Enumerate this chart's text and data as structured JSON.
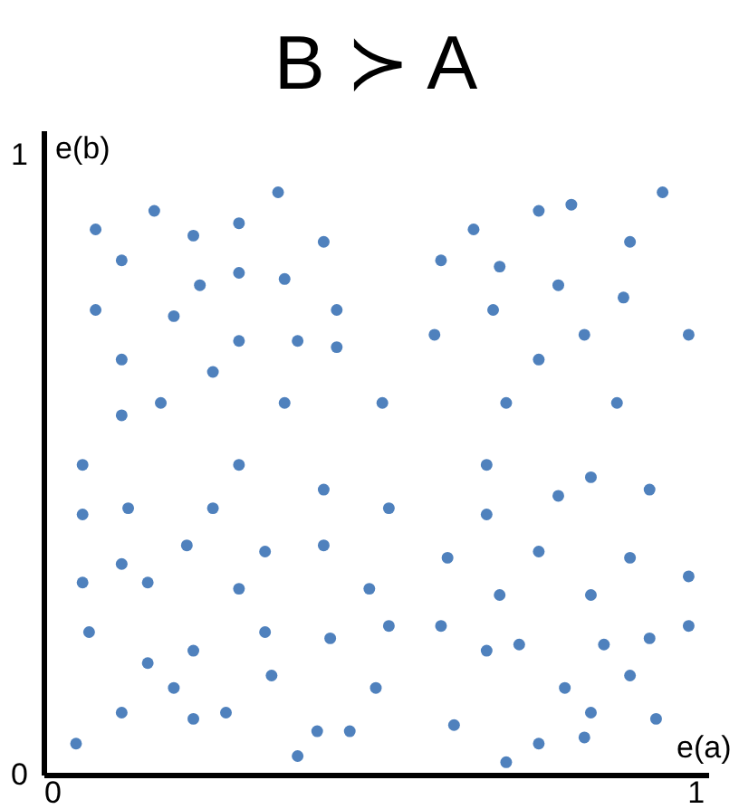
{
  "chart_data": {
    "type": "scatter",
    "title": "B ≻ A",
    "xlabel": "e(a)",
    "ylabel": "e(b)",
    "xlim": [
      0,
      1.02
    ],
    "ylim": [
      0,
      1.04
    ],
    "xticks": [
      0,
      1
    ],
    "yticks": [
      0,
      1
    ],
    "grid": false,
    "marker": "circle",
    "series": [
      {
        "color": "#4f81bd",
        "x": [
          0.36,
          0.17,
          0.08,
          0.3,
          0.23,
          0.43,
          0.12,
          0.3,
          0.37,
          0.24,
          0.08,
          0.45,
          0.2,
          0.3,
          0.39,
          0.45,
          0.12,
          0.26,
          0.18,
          0.37,
          0.52,
          0.12,
          0.06,
          0.3,
          0.95,
          0.76,
          0.81,
          0.66,
          0.9,
          0.61,
          0.7,
          0.79,
          0.89,
          0.69,
          0.6,
          0.83,
          0.99,
          0.76,
          0.71,
          0.88,
          0.68,
          0.84,
          0.06,
          0.13,
          0.26,
          0.43,
          0.22,
          0.34,
          0.43,
          0.12,
          0.06,
          0.16,
          0.3,
          0.5,
          0.07,
          0.34,
          0.23,
          0.44,
          0.16,
          0.35,
          0.2,
          0.51,
          0.12,
          0.23,
          0.28,
          0.05,
          0.42,
          0.47,
          0.39,
          0.79,
          0.93,
          0.53,
          0.68,
          0.62,
          0.76,
          0.9,
          0.99,
          0.7,
          0.84,
          0.53,
          0.61,
          0.99,
          0.68,
          0.73,
          0.86,
          0.93,
          0.8,
          0.9,
          0.84,
          0.94,
          0.63,
          0.76,
          0.83,
          0.71
        ],
        "values": [
          0.94,
          0.91,
          0.88,
          0.89,
          0.87,
          0.86,
          0.83,
          0.81,
          0.8,
          0.79,
          0.75,
          0.75,
          0.74,
          0.7,
          0.7,
          0.69,
          0.67,
          0.65,
          0.6,
          0.6,
          0.6,
          0.58,
          0.5,
          0.5,
          0.94,
          0.91,
          0.92,
          0.88,
          0.86,
          0.83,
          0.82,
          0.79,
          0.77,
          0.75,
          0.71,
          0.71,
          0.71,
          0.67,
          0.6,
          0.6,
          0.5,
          0.48,
          0.42,
          0.43,
          0.43,
          0.46,
          0.37,
          0.36,
          0.37,
          0.34,
          0.31,
          0.31,
          0.3,
          0.3,
          0.23,
          0.23,
          0.2,
          0.22,
          0.18,
          0.16,
          0.14,
          0.14,
          0.1,
          0.09,
          0.1,
          0.05,
          0.07,
          0.07,
          0.03,
          0.45,
          0.46,
          0.43,
          0.42,
          0.35,
          0.36,
          0.35,
          0.32,
          0.29,
          0.29,
          0.24,
          0.24,
          0.24,
          0.2,
          0.21,
          0.21,
          0.22,
          0.14,
          0.16,
          0.1,
          0.09,
          0.08,
          0.05,
          0.06,
          0.02
        ]
      }
    ]
  }
}
